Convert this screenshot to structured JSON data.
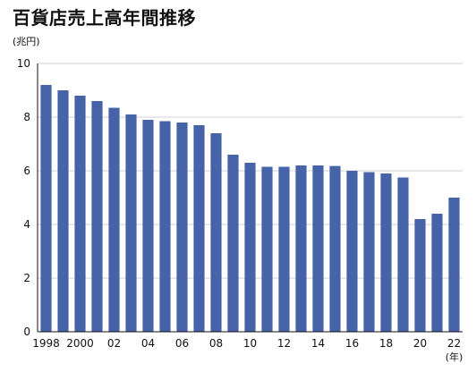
{
  "chart_data": {
    "type": "bar",
    "title": "百貨店売上高年間推移",
    "ylabel": "(兆円)",
    "xlabel": "(年)",
    "ylim": [
      0,
      10
    ],
    "yticks": [
      0,
      2,
      4,
      6,
      8,
      10
    ],
    "categories": [
      "1998",
      "1999",
      "2000",
      "2001",
      "2002",
      "2003",
      "2004",
      "2005",
      "2006",
      "2007",
      "2008",
      "2009",
      "2010",
      "2011",
      "2012",
      "2013",
      "2014",
      "2015",
      "2016",
      "2017",
      "2018",
      "2019",
      "2020",
      "2021",
      "2022"
    ],
    "xtick_labels": [
      "1998",
      "",
      "2000",
      "",
      "02",
      "",
      "04",
      "",
      "06",
      "",
      "08",
      "",
      "10",
      "",
      "12",
      "",
      "14",
      "",
      "16",
      "",
      "18",
      "",
      "20",
      "",
      "22"
    ],
    "series": [
      {
        "values": [
          9.2,
          9.0,
          8.8,
          8.6,
          8.35,
          8.1,
          7.9,
          7.85,
          7.8,
          7.7,
          7.4,
          6.6,
          6.3,
          6.15,
          6.15,
          6.2,
          6.2,
          6.18,
          6.0,
          5.95,
          5.9,
          5.75,
          4.2,
          4.4,
          5.0
        ],
        "color": "#4563a6"
      }
    ],
    "grid": true
  }
}
